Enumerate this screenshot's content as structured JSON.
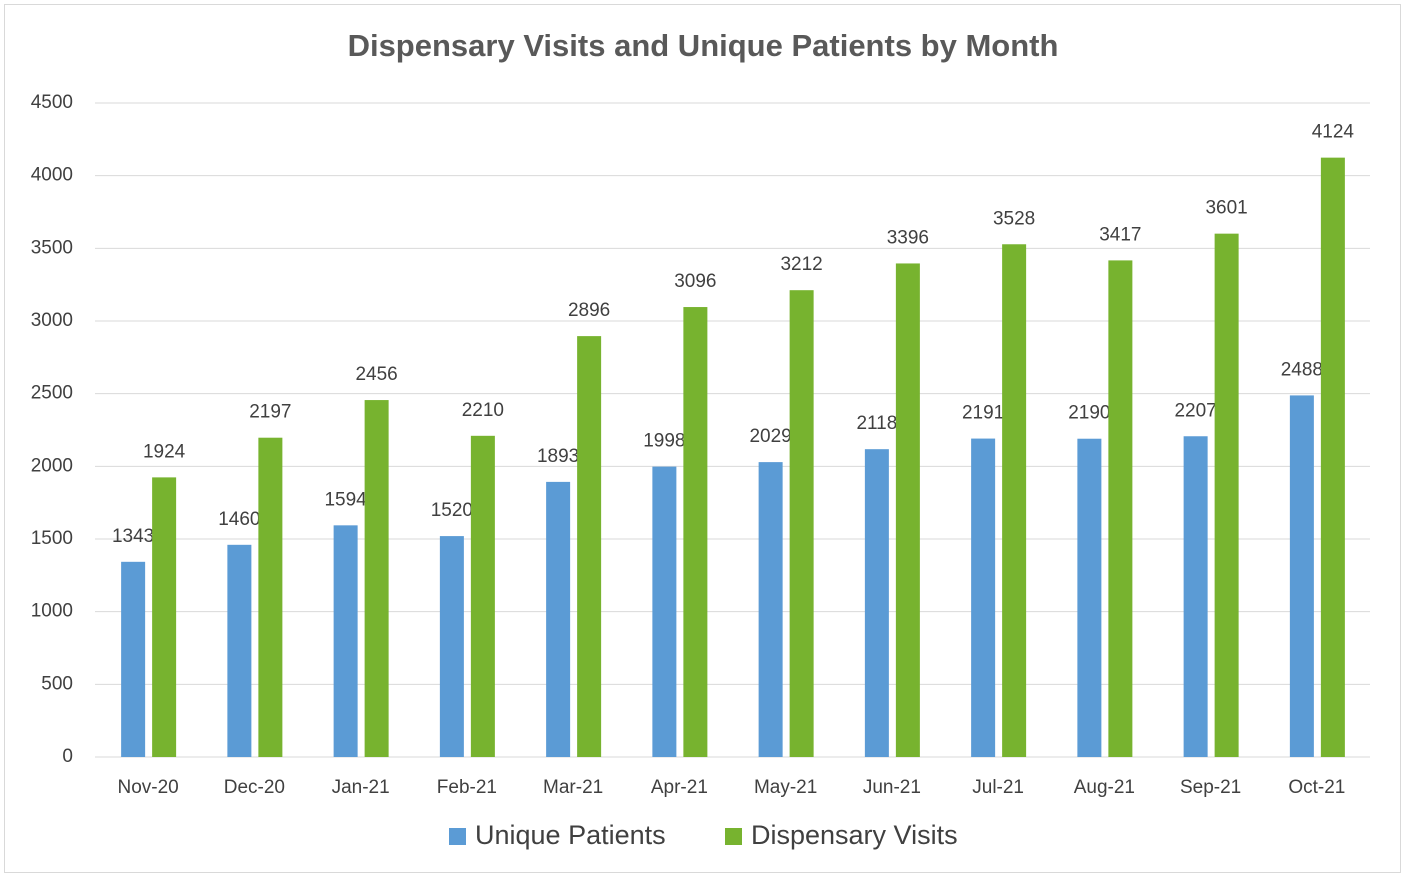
{
  "chart_data": {
    "type": "bar",
    "title": "Dispensary Visits and Unique Patients by Month",
    "categories": [
      "Nov-20",
      "Dec-20",
      "Jan-21",
      "Feb-21",
      "Mar-21",
      "Apr-21",
      "May-21",
      "Jun-21",
      "Jul-21",
      "Aug-21",
      "Sep-21",
      "Oct-21"
    ],
    "series": [
      {
        "name": "Unique Patients",
        "color": "#5b9bd5",
        "values": [
          1343,
          1460,
          1594,
          1520,
          1893,
          1998,
          2029,
          2118,
          2191,
          2190,
          2207,
          2488
        ]
      },
      {
        "name": "Dispensary Visits",
        "color": "#77b32f",
        "values": [
          1924,
          2197,
          2456,
          2210,
          2896,
          3096,
          3212,
          3396,
          3528,
          3417,
          3601,
          4124
        ]
      }
    ],
    "ylim": [
      0,
      4500
    ],
    "yticks": [
      0,
      500,
      1000,
      1500,
      2000,
      2500,
      3000,
      3500,
      4000,
      4500
    ],
    "grid": true,
    "legend": "bottom"
  }
}
